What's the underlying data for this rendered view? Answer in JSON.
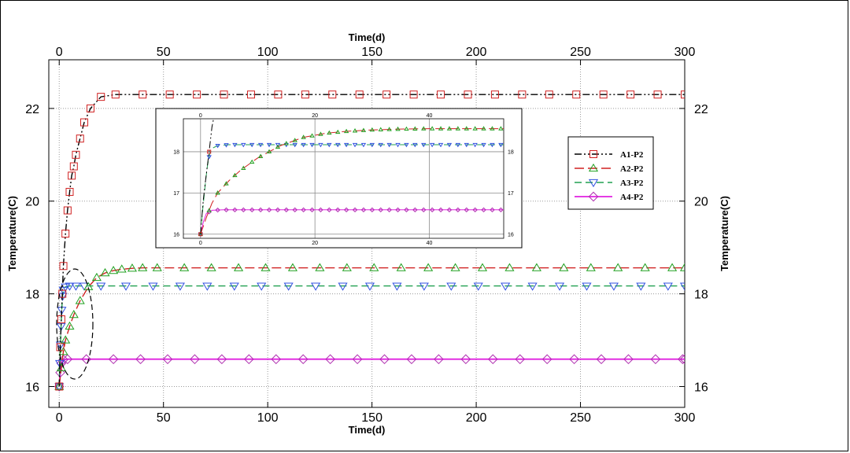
{
  "chart_data": {
    "type": "line",
    "xlabel": "Time(d)",
    "ylabel": "Temperature(C)",
    "xlim": [
      -5,
      300
    ],
    "ylim": [
      15.55,
      23.05
    ],
    "x_ticks": [
      0,
      50,
      100,
      150,
      200,
      250,
      300
    ],
    "y_ticks": [
      16,
      18,
      20,
      22
    ],
    "grid": true,
    "legend_position": "right",
    "series": [
      {
        "name": "A1-P2",
        "color": "#000000",
        "marker": "square",
        "marker_color": "#d02020",
        "dash": "dash-dot-dot",
        "x": [
          0,
          0.5,
          1,
          1.5,
          2,
          3,
          4,
          5,
          6,
          7,
          8,
          10,
          12,
          15,
          20,
          27,
          40,
          53,
          66,
          79,
          92,
          105,
          118,
          131,
          144,
          157,
          170,
          183,
          196,
          209,
          222,
          235,
          248,
          261,
          274,
          287,
          300
        ],
        "y": [
          16.0,
          16.85,
          17.45,
          18.0,
          18.6,
          19.3,
          19.8,
          20.2,
          20.55,
          20.75,
          21.0,
          21.35,
          21.7,
          22.0,
          22.25,
          22.3,
          22.3,
          22.3,
          22.3,
          22.3,
          22.3,
          22.3,
          22.3,
          22.3,
          22.3,
          22.3,
          22.3,
          22.3,
          22.3,
          22.3,
          22.3,
          22.3,
          22.3,
          22.3,
          22.3,
          22.3,
          22.3
        ]
      },
      {
        "name": "A2-P2",
        "color": "#d02020",
        "marker": "triangle-up",
        "marker_color": "#20a020",
        "dash": "long-dash",
        "x": [
          0,
          1,
          2,
          3,
          5,
          7,
          10,
          14,
          18,
          22,
          26,
          30,
          35,
          40,
          47,
          60,
          73,
          86,
          99,
          112,
          125,
          138,
          151,
          164,
          177,
          190,
          203,
          216,
          229,
          242,
          255,
          268,
          281,
          294,
          300
        ],
        "y": [
          16.0,
          16.4,
          16.75,
          17.0,
          17.3,
          17.55,
          17.85,
          18.15,
          18.35,
          18.45,
          18.5,
          18.53,
          18.55,
          18.56,
          18.56,
          18.56,
          18.56,
          18.56,
          18.56,
          18.56,
          18.56,
          18.56,
          18.56,
          18.56,
          18.56,
          18.56,
          18.56,
          18.56,
          18.56,
          18.56,
          18.56,
          18.56,
          18.56,
          18.56,
          18.56
        ]
      },
      {
        "name": "A3-P2",
        "color": "#20a050",
        "marker": "triangle-down",
        "marker_color": "#3050e0",
        "dash": "dash",
        "x": [
          0,
          0.3,
          0.6,
          0.9,
          1.2,
          1.6,
          2,
          3,
          5,
          8,
          12,
          20,
          32,
          45,
          58,
          71,
          84,
          97,
          110,
          123,
          136,
          149,
          162,
          175,
          188,
          201,
          214,
          227,
          240,
          253,
          266,
          279,
          292,
          300
        ],
        "y": [
          16.0,
          16.5,
          16.9,
          17.3,
          17.65,
          17.95,
          18.08,
          18.15,
          18.17,
          18.17,
          18.17,
          18.17,
          18.17,
          18.17,
          18.17,
          18.17,
          18.17,
          18.17,
          18.17,
          18.17,
          18.17,
          18.17,
          18.17,
          18.17,
          18.17,
          18.17,
          18.17,
          18.17,
          18.17,
          18.17,
          18.17,
          18.17,
          18.17,
          18.17
        ]
      },
      {
        "name": "A4-P2",
        "color": "#e020e0",
        "marker": "diamond",
        "marker_color": "#b030b0",
        "dash": "solid",
        "x": [
          0,
          0.5,
          1,
          2,
          4,
          13,
          26,
          39,
          52,
          65,
          78,
          91,
          104,
          117,
          130,
          143,
          156,
          169,
          182,
          195,
          208,
          221,
          234,
          247,
          260,
          273,
          286,
          299,
          300
        ],
        "y": [
          16.0,
          16.3,
          16.5,
          16.58,
          16.59,
          16.59,
          16.59,
          16.59,
          16.59,
          16.59,
          16.59,
          16.59,
          16.59,
          16.59,
          16.59,
          16.59,
          16.59,
          16.59,
          16.59,
          16.59,
          16.59,
          16.59,
          16.59,
          16.59,
          16.59,
          16.59,
          16.59,
          16.59,
          16.59
        ]
      }
    ],
    "inset": {
      "xlim": [
        -3,
        53
      ],
      "ylim": [
        15.9,
        18.8
      ],
      "x_ticks": [
        0,
        20,
        40
      ],
      "y_ticks": [
        16,
        17,
        18
      ]
    }
  }
}
